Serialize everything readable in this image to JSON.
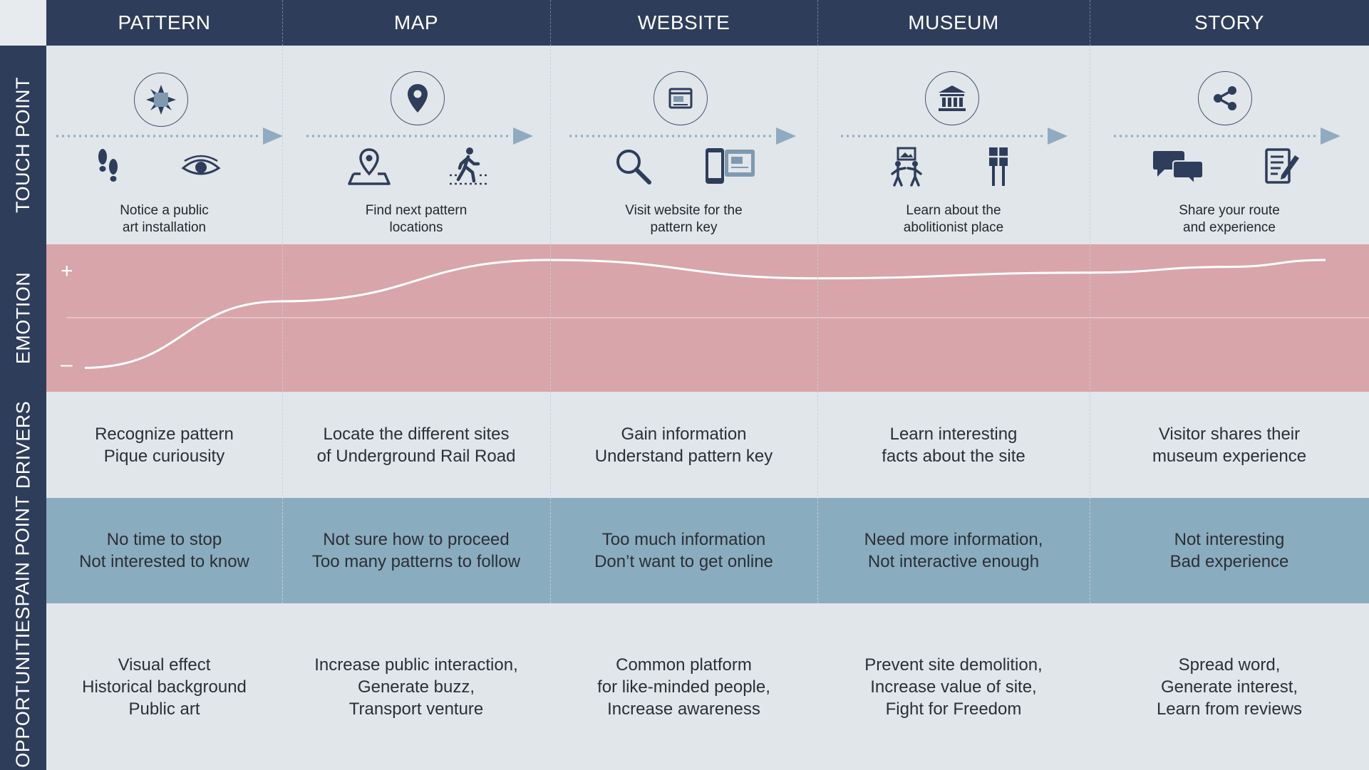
{
  "columns": [
    {
      "header": "PATTERN",
      "touch_caption": "Notice a public\nart installation",
      "main_icon": "quilt-star-icon",
      "sub_icons": [
        "footprints-icon",
        "eye-icon"
      ],
      "driver": "Recognize pattern\nPique curiousity",
      "pain": "No time to stop\nNot interested to know",
      "opportunity": "Visual effect\nHistorical background\nPublic art"
    },
    {
      "header": "MAP",
      "touch_caption": "Find next pattern\nlocations",
      "main_icon": "map-pin-icon",
      "sub_icons": [
        "location-on-map-icon",
        "walking-person-icon"
      ],
      "driver": "Locate the different sites\nof Underground Rail Road",
      "pain": "Not sure how to proceed\nToo many patterns to follow",
      "opportunity": "Increase public interaction,\nGenerate buzz,\nTransport venture"
    },
    {
      "header": "WEBSITE",
      "touch_caption": "Visit website for the\npattern key",
      "main_icon": "browser-window-icon",
      "sub_icons": [
        "magnifier-icon",
        "phone-and-web-icon"
      ],
      "driver": "Gain information\nUnderstand pattern key",
      "pain": "Too much information\nDon’t want to get online",
      "opportunity": "Common platform\nfor like-minded people,\nIncrease awareness"
    },
    {
      "header": "MUSEUM",
      "touch_caption": "Learn about the\nabolitionist place",
      "main_icon": "museum-building-icon",
      "sub_icons": [
        "visitors-at-exhibit-icon",
        "signpost-icon"
      ],
      "driver": "Learn interesting\nfacts about the site",
      "pain": "Need more information,\nNot interactive enough",
      "opportunity": "Prevent site demolition,\nIncrease value of site,\nFight for Freedom"
    },
    {
      "header": "STORY",
      "touch_caption": "Share your route\nand experience",
      "main_icon": "share-icon",
      "sub_icons": [
        "chat-bubbles-icon",
        "write-review-icon"
      ],
      "driver": "Visitor shares their\nmuseum experience",
      "pain": "Not interesting\nBad experience",
      "opportunity": "Spread word,\nGenerate interest,\nLearn from reviews"
    }
  ],
  "rows": {
    "touch_point": "TOUCH POINT",
    "emotion": "EMOTION",
    "drivers": "DRIVERS",
    "pain_point": "PAIN POINT",
    "opportunities": "OPPORTUNITIES"
  },
  "emotion": {
    "plus_label": "+",
    "minus_label": "–",
    "curve_level": [
      0.06,
      0.64,
      1.0,
      0.84,
      0.89,
      0.94,
      1.0
    ]
  },
  "colors": {
    "header_bg": "#2e3d5a",
    "band_light": "#e1e6ea",
    "emotion_band": "#d8a5aa",
    "pain_band": "#8aacbf",
    "arrow": "#90abbf",
    "icon": "#2e3d5a",
    "icon_accent": "#7f9ab0"
  }
}
